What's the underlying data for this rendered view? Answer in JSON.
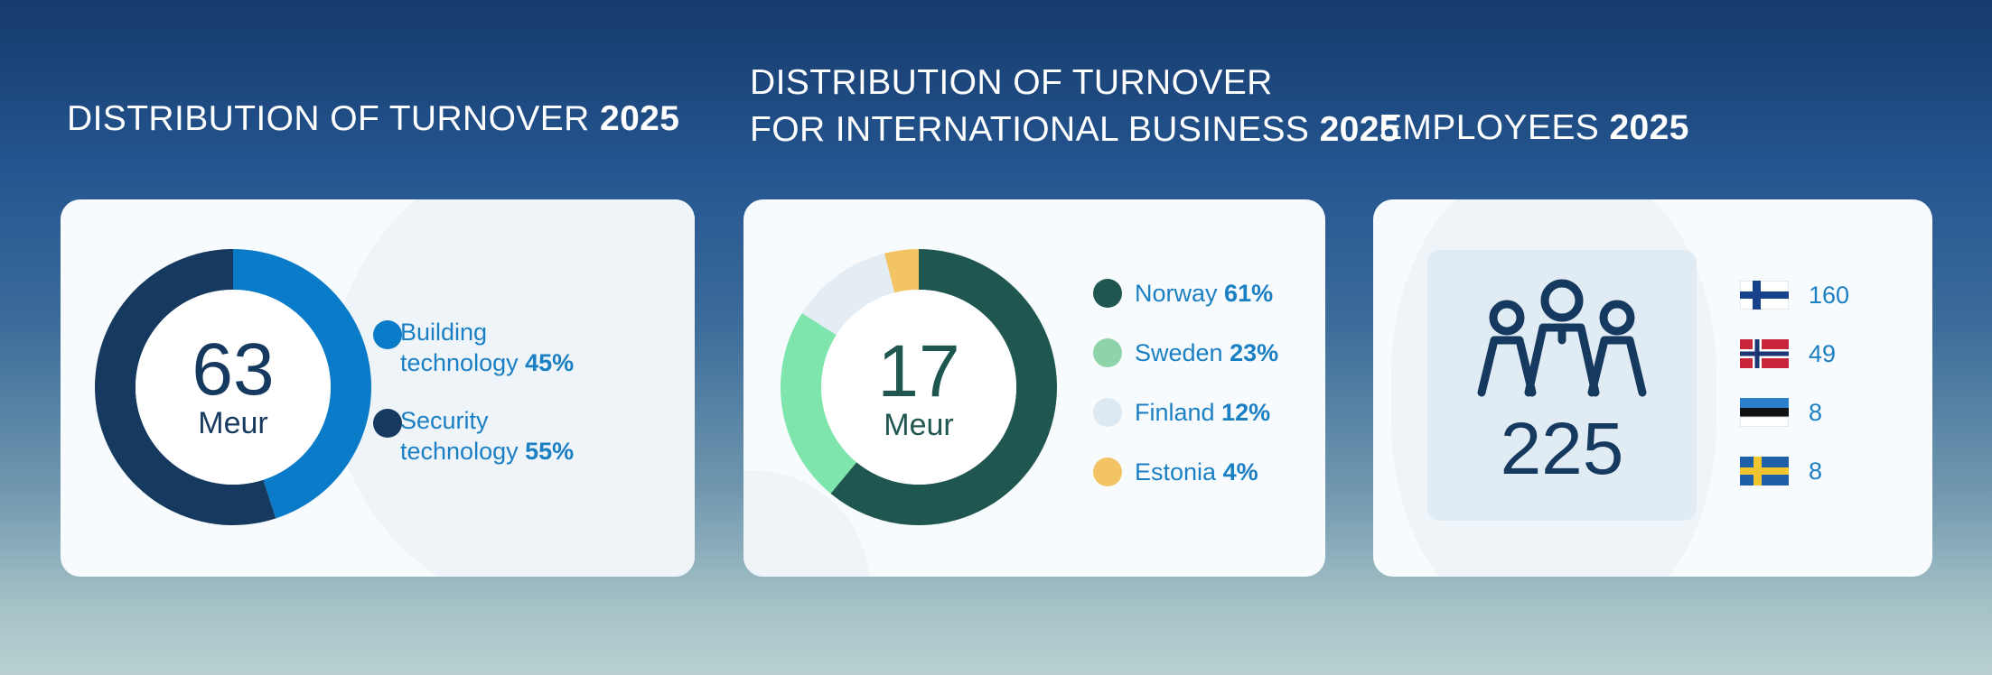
{
  "titles": {
    "turnover_main": "DISTRIBUTION OF TURNOVER",
    "turnover_year": "2025",
    "international_line1": "DISTRIBUTION OF TURNOVER",
    "international_line2": "FOR INTERNATIONAL BUSINESS",
    "international_year": "2025",
    "employees_main": "EMPLOYEES",
    "employees_year": "2025"
  },
  "chart_data": [
    {
      "type": "pie",
      "title": "DISTRIBUTION OF TURNOVER 2025",
      "center_value": "63",
      "center_unit": "Meur",
      "slices": [
        {
          "label_line1": "Building",
          "label_line2": "technology",
          "pct_label": "45%",
          "value": 45,
          "color": "#0a7bc8"
        },
        {
          "label_line1": "Security",
          "label_line2": "technology",
          "pct_label": "55%",
          "value": 55,
          "color": "#163a5f"
        }
      ]
    },
    {
      "type": "pie",
      "title": "DISTRIBUTION OF TURNOVER FOR INTERNATIONAL BUSINESS 2025",
      "center_value": "17",
      "center_unit": "Meur",
      "slices": [
        {
          "label": "Norway",
          "pct_label": "61%",
          "value": 61,
          "color": "#1f5750",
          "legend_color": "#1f5750"
        },
        {
          "label": "Sweden",
          "pct_label": "23%",
          "value": 23,
          "color": "#7ee6ad",
          "legend_color": "#8ed3a9"
        },
        {
          "label": "Finland",
          "pct_label": "12%",
          "value": 12,
          "color": "#e4edf4",
          "legend_color": "#dce9f2"
        },
        {
          "label": "Estonia",
          "pct_label": "4%",
          "value": 4,
          "color": "#f3c463",
          "legend_color": "#f3c463"
        }
      ]
    }
  ],
  "employees": {
    "total": "225",
    "icon": "people-group-icon",
    "countries": [
      {
        "flag": "finland-flag-icon",
        "value": "160"
      },
      {
        "flag": "norway-flag-icon",
        "value": "49"
      },
      {
        "flag": "estonia-flag-icon",
        "value": "8"
      },
      {
        "flag": "sweden-flag-icon",
        "value": "8"
      }
    ]
  },
  "colors": {
    "text_dark": "#163a5f",
    "text_green": "#1f5750",
    "accent_blue": "#1b7fc4"
  }
}
